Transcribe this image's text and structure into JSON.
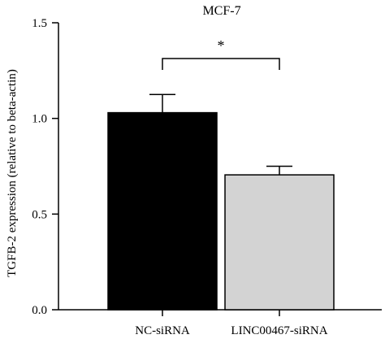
{
  "chart_data": {
    "type": "bar",
    "title": "MCF-7",
    "xlabel": "",
    "ylabel": "TGFB-2 expression (relative to beta-actin)",
    "ylim": [
      0,
      1.5
    ],
    "yticks": [
      0.0,
      0.5,
      1.0,
      1.5
    ],
    "ytick_labels": [
      "0.0",
      "0.5",
      "1.0",
      "1.5"
    ],
    "grid": false,
    "categories": [
      "NC-siRNA",
      "LINC00467-siRNA"
    ],
    "values": [
      1.03,
      0.705
    ],
    "errors": [
      0.095,
      0.045
    ],
    "bar_colors": [
      "#000000",
      "#d3d3d3"
    ],
    "significance": {
      "between": [
        0,
        1
      ],
      "label": "*"
    }
  }
}
